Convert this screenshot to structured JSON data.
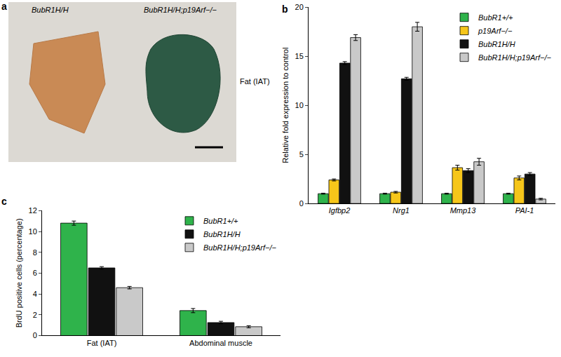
{
  "panel_a": {
    "label": "a",
    "image": {
      "left_label": "BubR1H/H",
      "right_label": "BubR1H/H;p19Arf−/−",
      "side_label": "Fat (IAT)"
    }
  },
  "chart_data": [
    {
      "label": "b",
      "type": "bar",
      "ylabel": "Relative fold expression to control",
      "categories": [
        "Igfbp2",
        "Nrg1",
        "Mmp13",
        "PAI-1"
      ],
      "series": [
        {
          "name": "BubR1+/+",
          "color": "#2fb34b",
          "values": [
            1,
            1,
            1,
            1
          ],
          "errors": [
            0.05,
            0.05,
            0.05,
            0.05
          ]
        },
        {
          "name": "p19Arf−/−",
          "color": "#f6c61a",
          "values": [
            2.4,
            1.15,
            3.65,
            2.6
          ],
          "errors": [
            0.1,
            0.08,
            0.25,
            0.2
          ]
        },
        {
          "name": "BubR1H/H",
          "color": "#111111",
          "values": [
            14.3,
            12.7,
            3.35,
            3.0
          ],
          "errors": [
            0.15,
            0.15,
            0.2,
            0.15
          ]
        },
        {
          "name": "BubR1H/H;p19Arf−/−",
          "color": "#c9c9c9",
          "values": [
            16.9,
            18.0,
            4.25,
            0.45
          ],
          "errors": [
            0.3,
            0.45,
            0.35,
            0.08
          ]
        }
      ],
      "ylim": [
        0,
        20
      ],
      "yticks": [
        0,
        5,
        10,
        15,
        20
      ],
      "legend": "upper right"
    },
    {
      "label": "c",
      "type": "bar",
      "ylabel": "BrdU positive cells (percentage)",
      "categories": [
        "Fat (IAT)",
        "Abdominal muscle"
      ],
      "series": [
        {
          "name": "BubR1+/+",
          "color": "#2fb34b",
          "values": [
            10.8,
            2.4
          ],
          "errors": [
            0.2,
            0.2
          ]
        },
        {
          "name": "BubR1H/H",
          "color": "#111111",
          "values": [
            6.5,
            1.25
          ],
          "errors": [
            0.12,
            0.12
          ]
        },
        {
          "name": "BubR1H/H;p19Arf−/−",
          "color": "#c9c9c9",
          "values": [
            4.6,
            0.85
          ],
          "errors": [
            0.12,
            0.1
          ]
        }
      ],
      "ylim": [
        0,
        12
      ],
      "yticks": [
        0,
        2,
        4,
        6,
        8,
        10,
        12
      ],
      "legend": "upper right"
    }
  ]
}
